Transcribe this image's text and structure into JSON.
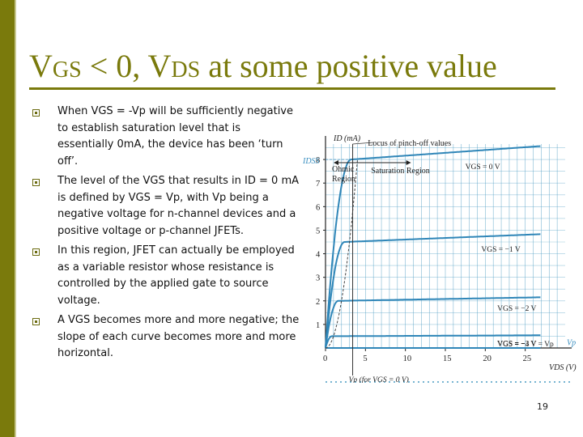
{
  "slide": {
    "title_parts": {
      "v1": "V",
      "gs": "GS",
      "mid": " < 0, V",
      "ds": "DS",
      "rest": " at some positive value"
    },
    "page_number": "19",
    "accent_color": "#7a7a0c"
  },
  "bullets": [
    {
      "text": "When VGS = -Vp will be sufficiently negative to establish saturation level that is essentially 0mA, the device has been ‘turn off’."
    },
    {
      "text": "The level of the VGS that results in ID = 0 mA is defined by VGS = Vp, with Vp being a negative voltage for n-channel devices and a positive voltage or p-channel JFETs."
    },
    {
      "text": "In this region, JFET can actually be employed as a variable resistor whose resistance is controlled by the applied gate to source voltage."
    },
    {
      "text": "A VGS becomes more and more negative; the slope of each curve becomes more and more horizontal."
    }
  ],
  "chart_data": {
    "type": "line",
    "title": "",
    "xlabel": "VDS (V)",
    "ylabel": "ID (mA)",
    "xlim": [
      0,
      30
    ],
    "ylim": [
      0,
      9
    ],
    "x_ticks": [
      0,
      5,
      10,
      15,
      20,
      25
    ],
    "y_ticks": [
      1,
      2,
      3,
      4,
      5,
      6,
      7,
      8
    ],
    "y_extra_label": "IDSS",
    "annotations": {
      "locus": "Locus of pinch-off values",
      "ohmic": "Ohmic Region",
      "saturation": "Saturation Region",
      "vp_label": "Vp (for VGS = 0 V)",
      "vp_right": "Vp"
    },
    "series": [
      {
        "name": "VGS = 0 V",
        "vgs": 0,
        "saturation": 8.0,
        "knee_x": 3.2
      },
      {
        "name": "VGS = −1 V",
        "vgs": -1,
        "saturation": 4.5,
        "knee_x": 2.4
      },
      {
        "name": "VGS = −2 V",
        "vgs": -2,
        "saturation": 2.0,
        "knee_x": 1.6
      },
      {
        "name": "VGS = −3 V",
        "vgs": -3,
        "saturation": 0.5,
        "knee_x": 0.8
      },
      {
        "name": "VGS = −4 V = Vp",
        "vgs": -4,
        "saturation": 0.0,
        "knee_x": 0.2
      }
    ]
  }
}
